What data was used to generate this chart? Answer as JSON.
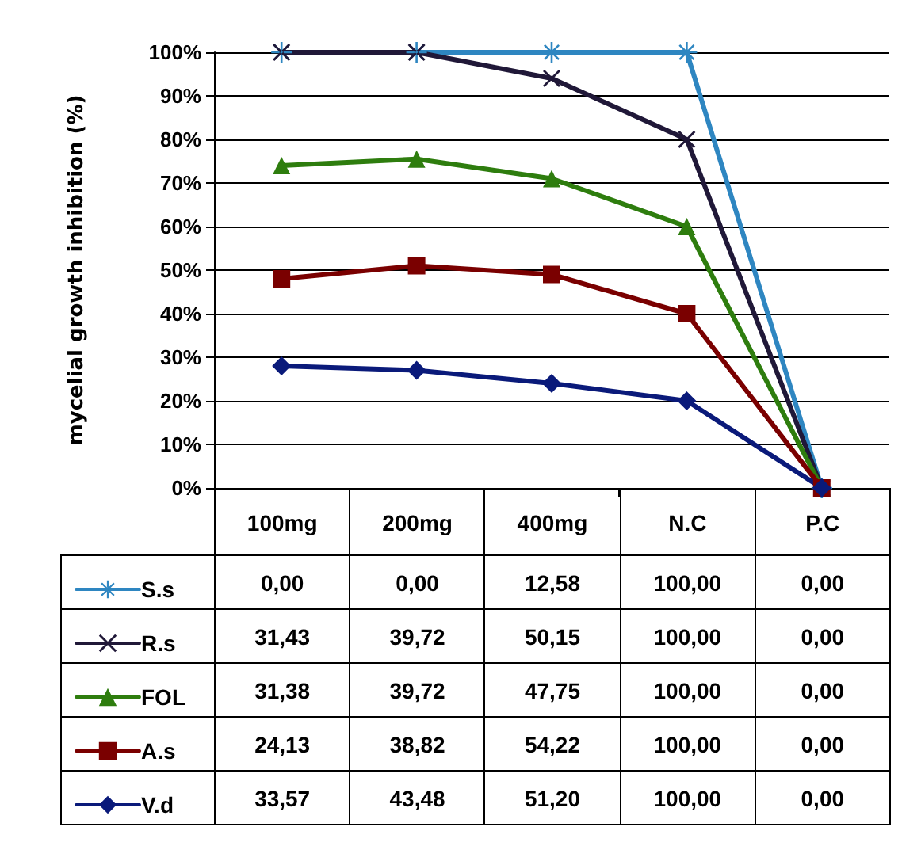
{
  "chart_data": {
    "type": "line",
    "ylabel": "mycelial growth inhibition (%)",
    "categories": [
      "100mg",
      "200mg",
      "400mg",
      "N.C",
      "P.C"
    ],
    "ylim": [
      0,
      100
    ],
    "yticks": [
      {
        "value": 0,
        "label": "0%"
      },
      {
        "value": 10,
        "label": "10%"
      },
      {
        "value": 20,
        "label": "20%"
      },
      {
        "value": 30,
        "label": "30%"
      },
      {
        "value": 40,
        "label": "40%"
      },
      {
        "value": 50,
        "label": "50%"
      },
      {
        "value": 60,
        "label": "60%"
      },
      {
        "value": 70,
        "label": "70%"
      },
      {
        "value": 80,
        "label": "80%"
      },
      {
        "value": 90,
        "label": "90%"
      },
      {
        "value": 100,
        "label": "100%"
      }
    ],
    "grid": "y",
    "legend": "bottom left",
    "line_style": "solid",
    "annotations": [
      "0,00",
      "0,00",
      "12,58",
      "100,00",
      "0,00",
      "31,43",
      "39,72",
      "50,15",
      "100,00",
      "0,00",
      "31,38",
      "39,72",
      "47,75",
      "100,00",
      "0,00",
      "24,13",
      "38,82",
      "54,22",
      "100,00",
      "0,00",
      "33,57",
      "43,48",
      "51,20",
      "100,00",
      "0,00"
    ],
    "series": [
      {
        "name": "S.s",
        "color": "#2e86c1",
        "marker": "star",
        "values": [
          100,
          100,
          100,
          100,
          0
        ]
      },
      {
        "name": "R.s",
        "color": "#201838",
        "marker": "cross",
        "values": [
          100,
          100,
          94,
          80,
          0
        ]
      },
      {
        "name": "FOL",
        "color": "#2e7d0e",
        "marker": "triangle",
        "values": [
          74,
          75.5,
          71,
          60,
          0
        ]
      },
      {
        "name": "A.s",
        "color": "#7a0000",
        "marker": "square",
        "values": [
          48,
          51,
          49,
          40,
          0
        ]
      },
      {
        "name": "V.d",
        "color": "#0a1a7a",
        "marker": "diamond",
        "values": [
          28,
          27,
          24,
          20,
          0
        ]
      }
    ]
  }
}
